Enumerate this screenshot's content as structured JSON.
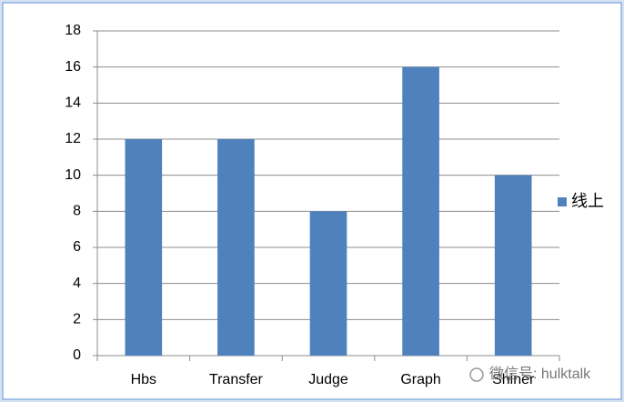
{
  "chart_data": {
    "type": "bar",
    "categories": [
      "Hbs",
      "Transfer",
      "Judge",
      "Graph",
      "Shiner"
    ],
    "series": [
      {
        "name": "线上",
        "color": "#4f81bd",
        "values": [
          12,
          12,
          8,
          16,
          10
        ]
      }
    ],
    "ylim": [
      0,
      18
    ],
    "yticks": [
      0,
      2,
      4,
      6,
      8,
      10,
      12,
      14,
      16,
      18
    ],
    "grid": true,
    "legend": "right",
    "watermark": "微信号: hulktalk"
  }
}
